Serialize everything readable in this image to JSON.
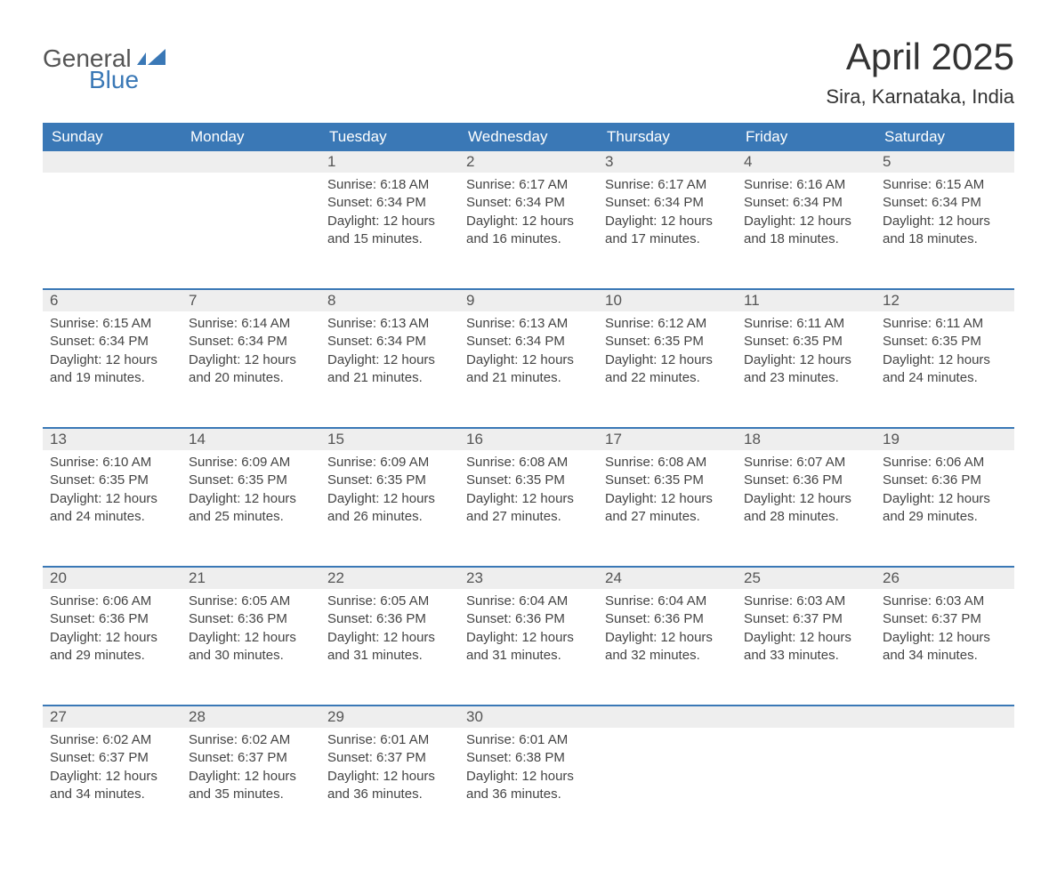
{
  "logo": {
    "text_general": "General",
    "text_blue": "Blue",
    "flag_color": "#3a78b6"
  },
  "title": "April 2025",
  "location": "Sira, Karnataka, India",
  "colors": {
    "header_bg": "#3a78b6",
    "header_text": "#ffffff",
    "daynum_bg": "#eeeeee",
    "daynum_border": "#3a78b6",
    "body_text": "#444444",
    "title_text": "#333333",
    "background": "#ffffff"
  },
  "fonts": {
    "title_size_pt": 32,
    "location_size_pt": 17,
    "header_size_pt": 13,
    "daynum_size_pt": 13,
    "body_size_pt": 11
  },
  "weekdays": [
    "Sunday",
    "Monday",
    "Tuesday",
    "Wednesday",
    "Thursday",
    "Friday",
    "Saturday"
  ],
  "weeks": [
    [
      null,
      null,
      {
        "n": "1",
        "sunrise": "6:18 AM",
        "sunset": "6:34 PM",
        "daylight": "12 hours and 15 minutes."
      },
      {
        "n": "2",
        "sunrise": "6:17 AM",
        "sunset": "6:34 PM",
        "daylight": "12 hours and 16 minutes."
      },
      {
        "n": "3",
        "sunrise": "6:17 AM",
        "sunset": "6:34 PM",
        "daylight": "12 hours and 17 minutes."
      },
      {
        "n": "4",
        "sunrise": "6:16 AM",
        "sunset": "6:34 PM",
        "daylight": "12 hours and 18 minutes."
      },
      {
        "n": "5",
        "sunrise": "6:15 AM",
        "sunset": "6:34 PM",
        "daylight": "12 hours and 18 minutes."
      }
    ],
    [
      {
        "n": "6",
        "sunrise": "6:15 AM",
        "sunset": "6:34 PM",
        "daylight": "12 hours and 19 minutes."
      },
      {
        "n": "7",
        "sunrise": "6:14 AM",
        "sunset": "6:34 PM",
        "daylight": "12 hours and 20 minutes."
      },
      {
        "n": "8",
        "sunrise": "6:13 AM",
        "sunset": "6:34 PM",
        "daylight": "12 hours and 21 minutes."
      },
      {
        "n": "9",
        "sunrise": "6:13 AM",
        "sunset": "6:34 PM",
        "daylight": "12 hours and 21 minutes."
      },
      {
        "n": "10",
        "sunrise": "6:12 AM",
        "sunset": "6:35 PM",
        "daylight": "12 hours and 22 minutes."
      },
      {
        "n": "11",
        "sunrise": "6:11 AM",
        "sunset": "6:35 PM",
        "daylight": "12 hours and 23 minutes."
      },
      {
        "n": "12",
        "sunrise": "6:11 AM",
        "sunset": "6:35 PM",
        "daylight": "12 hours and 24 minutes."
      }
    ],
    [
      {
        "n": "13",
        "sunrise": "6:10 AM",
        "sunset": "6:35 PM",
        "daylight": "12 hours and 24 minutes."
      },
      {
        "n": "14",
        "sunrise": "6:09 AM",
        "sunset": "6:35 PM",
        "daylight": "12 hours and 25 minutes."
      },
      {
        "n": "15",
        "sunrise": "6:09 AM",
        "sunset": "6:35 PM",
        "daylight": "12 hours and 26 minutes."
      },
      {
        "n": "16",
        "sunrise": "6:08 AM",
        "sunset": "6:35 PM",
        "daylight": "12 hours and 27 minutes."
      },
      {
        "n": "17",
        "sunrise": "6:08 AM",
        "sunset": "6:35 PM",
        "daylight": "12 hours and 27 minutes."
      },
      {
        "n": "18",
        "sunrise": "6:07 AM",
        "sunset": "6:36 PM",
        "daylight": "12 hours and 28 minutes."
      },
      {
        "n": "19",
        "sunrise": "6:06 AM",
        "sunset": "6:36 PM",
        "daylight": "12 hours and 29 minutes."
      }
    ],
    [
      {
        "n": "20",
        "sunrise": "6:06 AM",
        "sunset": "6:36 PM",
        "daylight": "12 hours and 29 minutes."
      },
      {
        "n": "21",
        "sunrise": "6:05 AM",
        "sunset": "6:36 PM",
        "daylight": "12 hours and 30 minutes."
      },
      {
        "n": "22",
        "sunrise": "6:05 AM",
        "sunset": "6:36 PM",
        "daylight": "12 hours and 31 minutes."
      },
      {
        "n": "23",
        "sunrise": "6:04 AM",
        "sunset": "6:36 PM",
        "daylight": "12 hours and 31 minutes."
      },
      {
        "n": "24",
        "sunrise": "6:04 AM",
        "sunset": "6:36 PM",
        "daylight": "12 hours and 32 minutes."
      },
      {
        "n": "25",
        "sunrise": "6:03 AM",
        "sunset": "6:37 PM",
        "daylight": "12 hours and 33 minutes."
      },
      {
        "n": "26",
        "sunrise": "6:03 AM",
        "sunset": "6:37 PM",
        "daylight": "12 hours and 34 minutes."
      }
    ],
    [
      {
        "n": "27",
        "sunrise": "6:02 AM",
        "sunset": "6:37 PM",
        "daylight": "12 hours and 34 minutes."
      },
      {
        "n": "28",
        "sunrise": "6:02 AM",
        "sunset": "6:37 PM",
        "daylight": "12 hours and 35 minutes."
      },
      {
        "n": "29",
        "sunrise": "6:01 AM",
        "sunset": "6:37 PM",
        "daylight": "12 hours and 36 minutes."
      },
      {
        "n": "30",
        "sunrise": "6:01 AM",
        "sunset": "6:38 PM",
        "daylight": "12 hours and 36 minutes."
      },
      null,
      null,
      null
    ]
  ],
  "labels": {
    "sunrise": "Sunrise: ",
    "sunset": "Sunset: ",
    "daylight": "Daylight: "
  }
}
